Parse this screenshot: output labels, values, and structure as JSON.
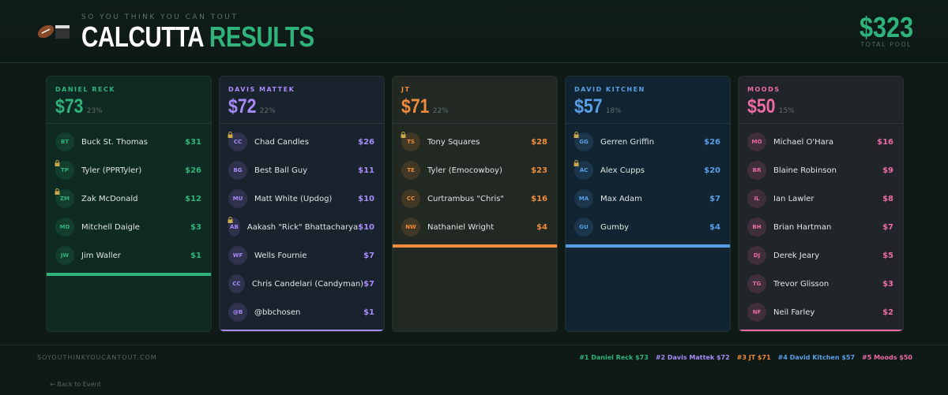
{
  "header": {
    "kicker": "SO YOU THINK YOU CAN TOUT",
    "title_main": "CALCUTTA",
    "title_accent": "RESULTS",
    "total": "$323",
    "total_label": "TOTAL POOL"
  },
  "columns": [
    {
      "owner": "DANIEL RECK",
      "total": "$73",
      "pct": "23%",
      "color": "#2fb37a",
      "bg": "#0f2a22",
      "players": [
        {
          "initials": "BT",
          "name": "Buck St. Thomas",
          "amount": "$31",
          "locked": false
        },
        {
          "initials": "TP",
          "name": "Tyler (PPRTyler)",
          "amount": "$26",
          "locked": true
        },
        {
          "initials": "ZM",
          "name": "Zak McDonald",
          "amount": "$12",
          "locked": true
        },
        {
          "initials": "MD",
          "name": "Mitchell Daigle",
          "amount": "$3",
          "locked": false
        },
        {
          "initials": "JW",
          "name": "Jim Waller",
          "amount": "$1",
          "locked": false
        }
      ]
    },
    {
      "owner": "DAVIS MATTEK",
      "total": "$72",
      "pct": "22%",
      "color": "#a78bfa",
      "bg": "#19232e",
      "players": [
        {
          "initials": "CC",
          "name": "Chad Candles",
          "amount": "$26",
          "locked": true
        },
        {
          "initials": "BG",
          "name": "Best Ball Guy",
          "amount": "$11",
          "locked": false
        },
        {
          "initials": "MU",
          "name": "Matt White (Updog)",
          "amount": "$10",
          "locked": false
        },
        {
          "initials": "AB",
          "name": "Aakash \"Rick\" Bhattacharya",
          "amount": "$10",
          "locked": true
        },
        {
          "initials": "WF",
          "name": "Wells Fournie",
          "amount": "$7",
          "locked": false
        },
        {
          "initials": "CC",
          "name": "Chris Candelari (Candyman)",
          "amount": "$7",
          "locked": false
        },
        {
          "initials": "@B",
          "name": "@bbchosen",
          "amount": "$1",
          "locked": false
        }
      ]
    },
    {
      "owner": "JT",
      "total": "$71",
      "pct": "22%",
      "color": "#f08a3c",
      "bg": "#212922",
      "players": [
        {
          "initials": "TS",
          "name": "Tony Squares",
          "amount": "$28",
          "locked": true
        },
        {
          "initials": "TE",
          "name": "Tyler (Emocowboy)",
          "amount": "$23",
          "locked": false
        },
        {
          "initials": "CC",
          "name": "Curtrambus \"Chris\"",
          "amount": "$16",
          "locked": false
        },
        {
          "initials": "NW",
          "name": "Nathaniel Wright",
          "amount": "$4",
          "locked": false
        }
      ]
    },
    {
      "owner": "DAVID KITCHEN",
      "total": "$57",
      "pct": "18%",
      "color": "#5b9ee8",
      "bg": "#112431",
      "players": [
        {
          "initials": "GG",
          "name": "Gerren Griffin",
          "amount": "$26",
          "locked": true
        },
        {
          "initials": "AC",
          "name": "Alex Cupps",
          "amount": "$20",
          "locked": true
        },
        {
          "initials": "MA",
          "name": "Max Adam",
          "amount": "$7",
          "locked": false
        },
        {
          "initials": "GU",
          "name": "Gumby",
          "amount": "$4",
          "locked": false
        }
      ]
    },
    {
      "owner": "MOODS",
      "total": "$50",
      "pct": "15%",
      "color": "#ec6ba5",
      "bg": "#212529",
      "players": [
        {
          "initials": "MO",
          "name": "Michael O'Hara",
          "amount": "$16",
          "locked": false
        },
        {
          "initials": "BR",
          "name": "Blaine Robinson",
          "amount": "$9",
          "locked": false
        },
        {
          "initials": "IL",
          "name": "Ian Lawler",
          "amount": "$8",
          "locked": false
        },
        {
          "initials": "BH",
          "name": "Brian Hartman",
          "amount": "$7",
          "locked": false
        },
        {
          "initials": "DJ",
          "name": "Derek Jeary",
          "amount": "$5",
          "locked": false
        },
        {
          "initials": "TG",
          "name": "Trevor Glisson",
          "amount": "$3",
          "locked": false
        },
        {
          "initials": "NF",
          "name": "Neil Farley",
          "amount": "$2",
          "locked": false
        }
      ]
    }
  ],
  "footer": {
    "site": "SOYOUTHINKYOUCANTOUT.COM",
    "legend": [
      "#1 Daniel Reck $73",
      "#2 Davis Mattek $72",
      "#3 JT $71",
      "#4 David Kitchen $57",
      "#5 Moods $50"
    ],
    "back": "← Back to Event"
  }
}
